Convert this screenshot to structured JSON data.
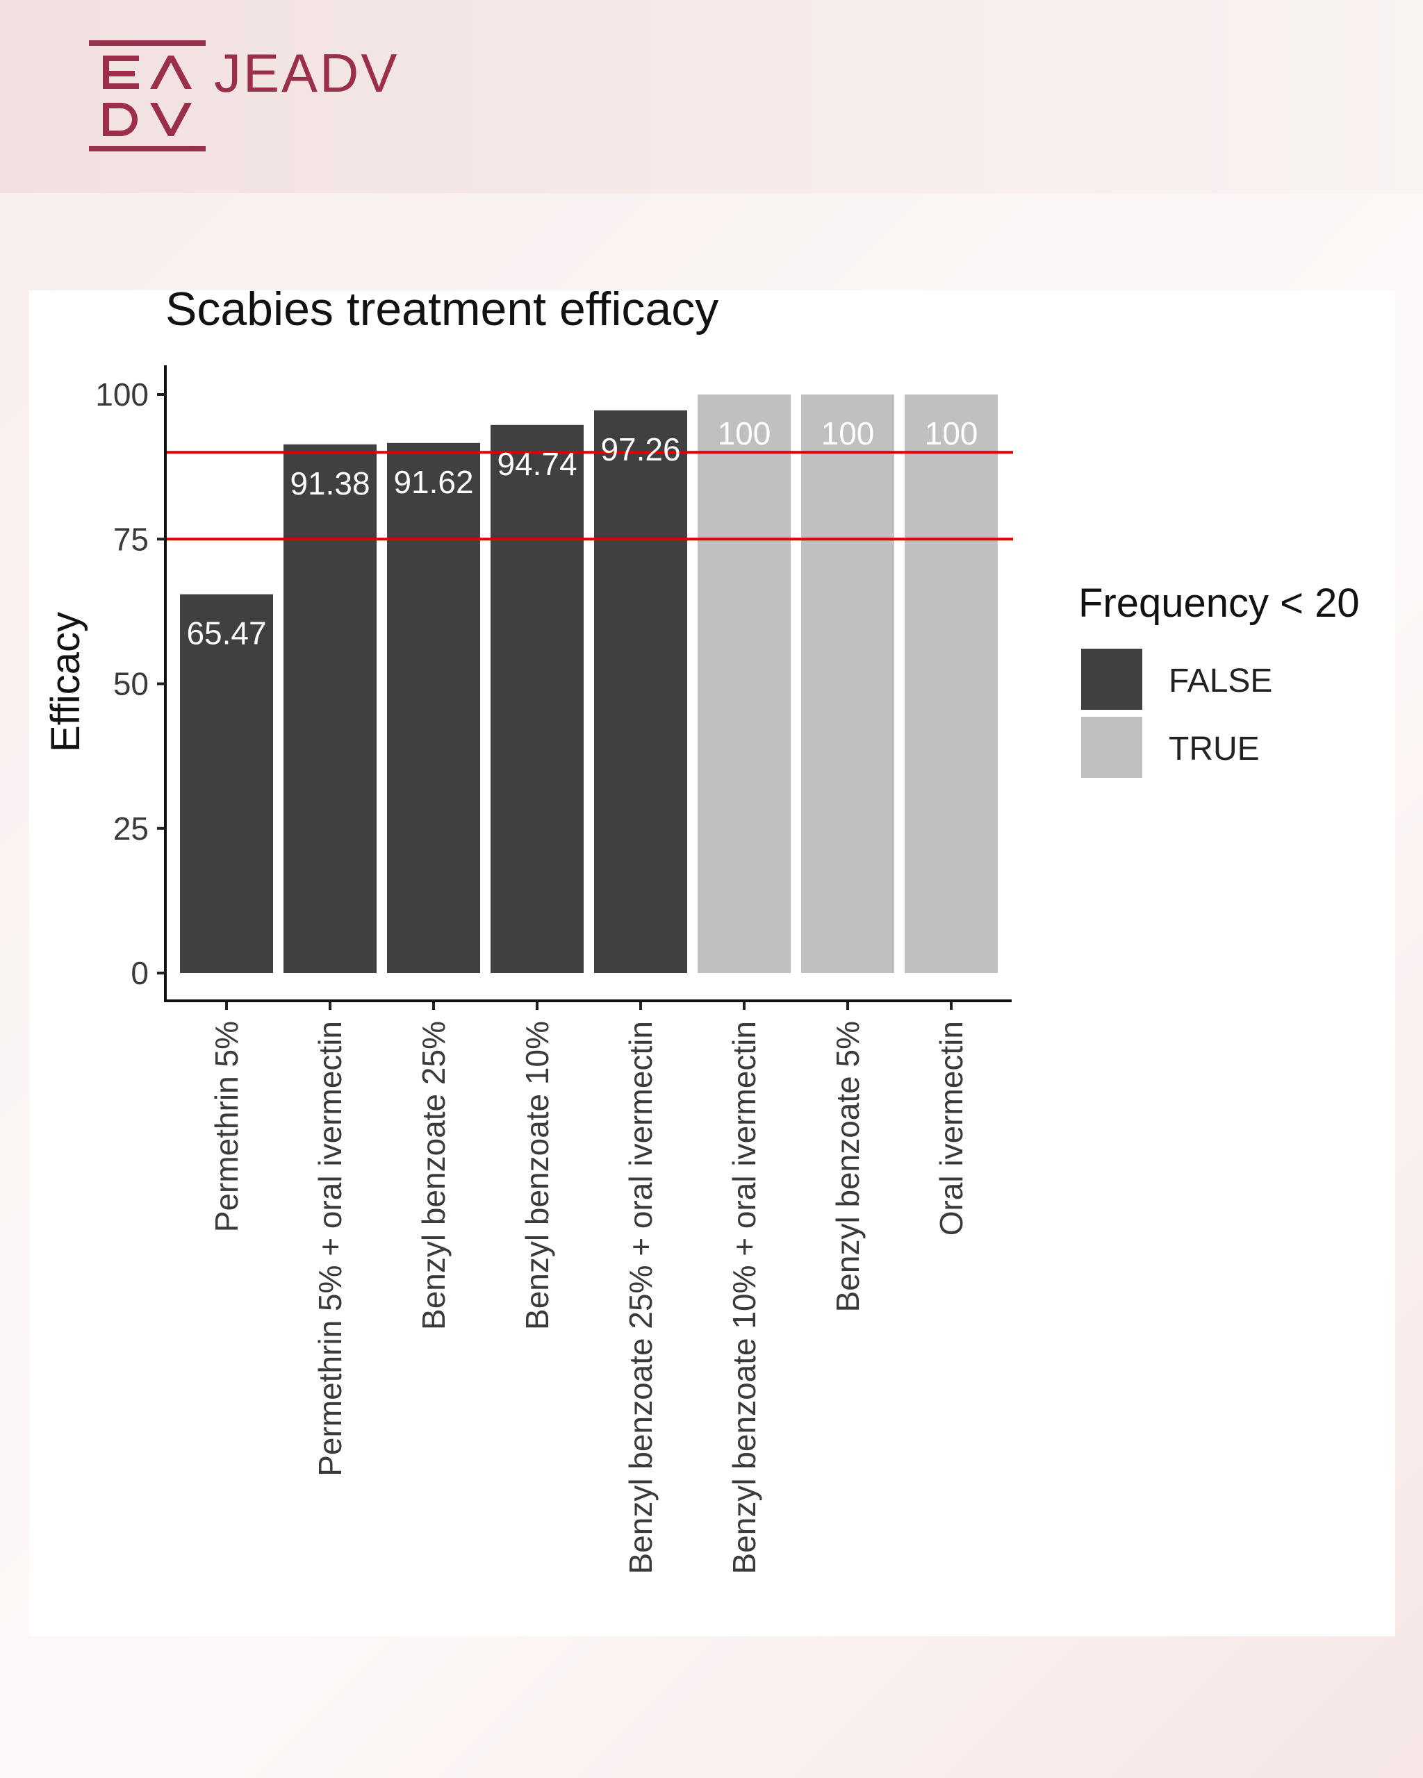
{
  "brand": {
    "logo_letters": "ΕΛ DV",
    "journal": "JEADV",
    "color": "#9b2e48"
  },
  "chart_data": {
    "type": "bar",
    "title": "Scabies treatment efficacy",
    "xlabel": "",
    "ylabel": "Efficacy",
    "ylim": [
      0,
      100
    ],
    "yticks": [
      0,
      25,
      50,
      75,
      100
    ],
    "grid": false,
    "categories": [
      "Permethrin 5%",
      "Permethrin 5% + oral ivermectin",
      "Benzyl benzoate 25%",
      "Benzyl benzoate 10%",
      "Benzyl benzoate 25% + oral ivermectin",
      "Benzyl benzoate 10% + oral ivermectin",
      "Benzyl benzoate 5%",
      "Oral ivermectin"
    ],
    "values": [
      65.47,
      91.38,
      91.62,
      94.74,
      97.26,
      100,
      100,
      100
    ],
    "value_labels": [
      "65.47",
      "91.38",
      "91.62",
      "94.74",
      "97.26",
      "100",
      "100",
      "100"
    ],
    "frequency_lt_20": [
      "FALSE",
      "FALSE",
      "FALSE",
      "FALSE",
      "FALSE",
      "TRUE",
      "TRUE",
      "TRUE"
    ],
    "reference_lines": [
      90,
      75
    ],
    "reference_line_color": "#e00000",
    "legend": {
      "title": "Frequency < 20",
      "position": "right",
      "entries": [
        {
          "label": "FALSE",
          "color": "#404040"
        },
        {
          "label": "TRUE",
          "color": "#c0c0c0"
        }
      ]
    }
  }
}
